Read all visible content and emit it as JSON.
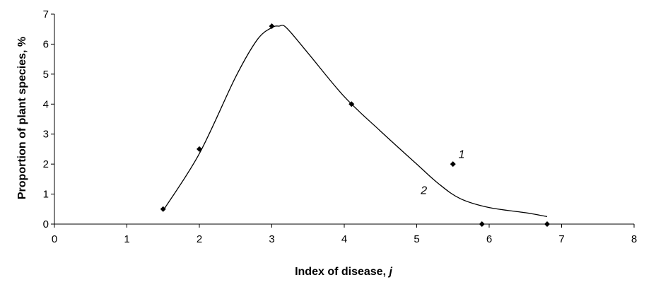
{
  "chart_data": {
    "type": "scatter",
    "title": "",
    "xlabel_text": "Index of disease, ",
    "xlabel_var": "j",
    "ylabel": "Proportion of plant species, %",
    "xlim": [
      0,
      8
    ],
    "ylim": [
      0,
      7
    ],
    "xticks": [
      "0",
      "1",
      "2",
      "3",
      "4",
      "5",
      "6",
      "7",
      "8"
    ],
    "yticks": [
      "0",
      "1",
      "2",
      "3",
      "4",
      "5",
      "6",
      "7"
    ],
    "grid": false,
    "series": [
      {
        "label": "1",
        "marker": "diamond",
        "x": [
          1.5,
          2.0,
          3.0,
          4.1,
          5.5,
          5.9,
          6.8
        ],
        "y": [
          0.5,
          2.5,
          6.6,
          4.0,
          2.0,
          0.0,
          0.0
        ]
      },
      {
        "label": "2",
        "style": "smooth-line",
        "x": [
          1.5,
          2.0,
          2.5,
          2.8,
          3.0,
          3.1,
          3.2,
          3.5,
          4.0,
          4.5,
          5.0,
          5.3,
          5.6,
          6.0,
          6.5,
          6.8
        ],
        "y": [
          0.45,
          2.35,
          4.9,
          6.15,
          6.55,
          6.6,
          6.55,
          5.7,
          4.25,
          3.1,
          2.0,
          1.35,
          0.85,
          0.55,
          0.38,
          0.25
        ]
      }
    ],
    "annotations": [
      {
        "text": "1",
        "x": 5.62,
        "y": 2.2
      },
      {
        "text": "2",
        "x": 5.1,
        "y": 1.0
      }
    ]
  }
}
